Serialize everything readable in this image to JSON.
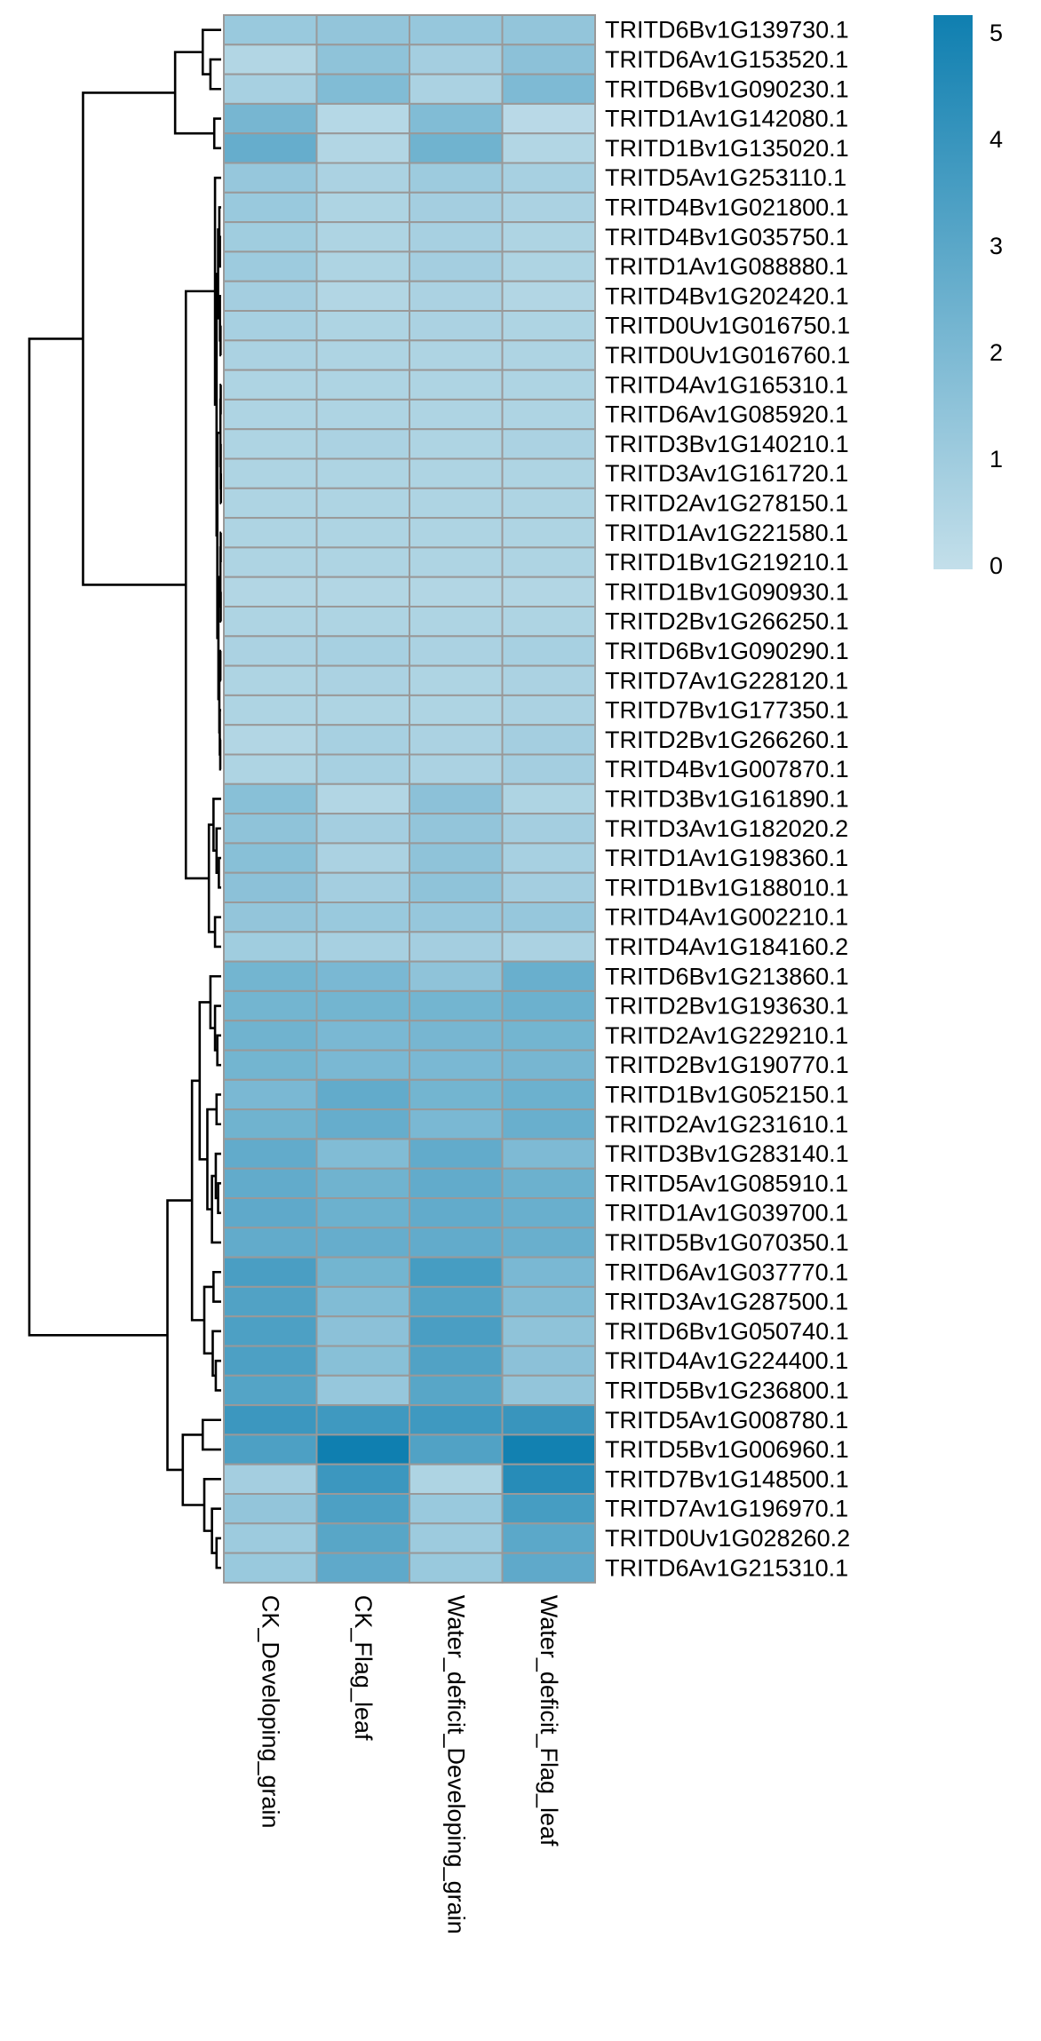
{
  "chart_data": {
    "type": "heatmap",
    "title": "",
    "xlabel": "",
    "ylabel": "",
    "grid": true,
    "legend_position": "top-right",
    "columns": [
      "CK_Developing_grain",
      "CK_Flag_leaf",
      "Water_deficit_Developing_grain",
      "Water_deficit_Flag_leaf"
    ],
    "rows": [
      "TRITD6Bv1G139730.1",
      "TRITD6Av1G153520.1",
      "TRITD6Bv1G090230.1",
      "TRITD1Av1G142080.1",
      "TRITD1Bv1G135020.1",
      "TRITD5Av1G253110.1",
      "TRITD4Bv1G021800.1",
      "TRITD4Bv1G035750.1",
      "TRITD1Av1G088880.1",
      "TRITD4Bv1G202420.1",
      "TRITD0Uv1G016750.1",
      "TRITD0Uv1G016760.1",
      "TRITD4Av1G165310.1",
      "TRITD6Av1G085920.1",
      "TRITD3Bv1G140210.1",
      "TRITD3Av1G161720.1",
      "TRITD2Av1G278150.1",
      "TRITD1Av1G221580.1",
      "TRITD1Bv1G219210.1",
      "TRITD1Bv1G090930.1",
      "TRITD2Bv1G266250.1",
      "TRITD6Bv1G090290.1",
      "TRITD7Av1G228120.1",
      "TRITD7Bv1G177350.1",
      "TRITD2Bv1G266260.1",
      "TRITD4Bv1G007870.1",
      "TRITD3Bv1G161890.1",
      "TRITD3Av1G182020.2",
      "TRITD1Av1G198360.1",
      "TRITD1Bv1G188010.1",
      "TRITD4Av1G002210.1",
      "TRITD4Av1G184160.2",
      "TRITD6Bv1G213860.1",
      "TRITD2Bv1G193630.1",
      "TRITD2Av1G229210.1",
      "TRITD2Bv1G190770.1",
      "TRITD1Bv1G052150.1",
      "TRITD2Av1G231610.1",
      "TRITD3Bv1G283140.1",
      "TRITD5Av1G085910.1",
      "TRITD1Av1G039700.1",
      "TRITD5Bv1G070350.1",
      "TRITD6Av1G037770.1",
      "TRITD3Av1G287500.1",
      "TRITD6Bv1G050740.1",
      "TRITD4Av1G224400.1",
      "TRITD5Bv1G236800.1",
      "TRITD5Av1G008780.1",
      "TRITD5Bv1G006960.1",
      "TRITD7Bv1G148500.1",
      "TRITD7Av1G196970.1",
      "TRITD0Uv1G028260.2",
      "TRITD6Av1G215310.1"
    ],
    "values": [
      [
        1.2,
        1.4,
        1.3,
        1.4
      ],
      [
        0.5,
        1.5,
        0.9,
        1.6
      ],
      [
        0.8,
        1.9,
        0.7,
        2.0
      ],
      [
        2.2,
        0.4,
        1.9,
        0.3
      ],
      [
        2.7,
        0.5,
        2.4,
        0.5
      ],
      [
        1.3,
        0.7,
        1.1,
        0.8
      ],
      [
        1.2,
        0.6,
        0.9,
        0.7
      ],
      [
        1.0,
        0.6,
        0.8,
        0.6
      ],
      [
        1.1,
        0.6,
        0.9,
        0.6
      ],
      [
        0.9,
        0.5,
        0.7,
        0.5
      ],
      [
        0.8,
        0.6,
        0.7,
        0.6
      ],
      [
        0.7,
        0.6,
        0.6,
        0.6
      ],
      [
        0.6,
        0.6,
        0.6,
        0.6
      ],
      [
        0.6,
        0.6,
        0.6,
        0.6
      ],
      [
        0.6,
        0.7,
        0.6,
        0.7
      ],
      [
        0.6,
        0.6,
        0.6,
        0.6
      ],
      [
        0.6,
        0.6,
        0.6,
        0.6
      ],
      [
        0.6,
        0.6,
        0.6,
        0.6
      ],
      [
        0.6,
        0.6,
        0.6,
        0.6
      ],
      [
        0.5,
        0.5,
        0.5,
        0.5
      ],
      [
        0.6,
        0.6,
        0.6,
        0.6
      ],
      [
        0.7,
        0.8,
        0.7,
        0.8
      ],
      [
        0.6,
        0.7,
        0.6,
        0.7
      ],
      [
        0.6,
        0.6,
        0.6,
        0.7
      ],
      [
        0.5,
        0.8,
        0.7,
        0.9
      ],
      [
        0.6,
        0.8,
        0.7,
        0.9
      ],
      [
        1.7,
        0.5,
        1.6,
        0.6
      ],
      [
        1.5,
        0.9,
        1.4,
        0.9
      ],
      [
        1.7,
        0.7,
        1.5,
        0.8
      ],
      [
        1.6,
        0.9,
        1.5,
        0.9
      ],
      [
        1.4,
        1.2,
        1.3,
        1.3
      ],
      [
        1.0,
        0.8,
        0.9,
        0.7
      ],
      [
        2.3,
        2.1,
        1.5,
        2.6
      ],
      [
        2.3,
        2.3,
        2.3,
        2.5
      ],
      [
        2.4,
        2.1,
        2.2,
        2.3
      ],
      [
        2.3,
        2.1,
        2.1,
        2.2
      ],
      [
        2.1,
        2.8,
        2.3,
        2.5
      ],
      [
        2.4,
        2.7,
        2.1,
        2.6
      ],
      [
        2.8,
        1.9,
        2.8,
        2.0
      ],
      [
        2.8,
        2.4,
        2.8,
        2.5
      ],
      [
        2.9,
        2.5,
        2.8,
        2.6
      ],
      [
        2.8,
        2.7,
        2.8,
        2.6
      ],
      [
        3.5,
        2.3,
        3.6,
        2.1
      ],
      [
        3.3,
        1.9,
        3.2,
        1.9
      ],
      [
        3.4,
        1.6,
        3.5,
        1.5
      ],
      [
        3.4,
        1.7,
        3.3,
        1.6
      ],
      [
        3.2,
        1.3,
        3.1,
        1.4
      ],
      [
        3.9,
        3.8,
        3.8,
        4.0
      ],
      [
        3.4,
        5.2,
        3.3,
        5.1
      ],
      [
        0.9,
        3.9,
        0.6,
        4.5
      ],
      [
        1.4,
        3.4,
        1.2,
        3.6
      ],
      [
        1.1,
        3.1,
        1.1,
        3.0
      ],
      [
        1.2,
        2.9,
        1.2,
        2.9
      ]
    ],
    "legend": {
      "min": 0,
      "max": 5.2,
      "ticks": [
        0,
        1,
        2,
        3,
        4,
        5
      ],
      "tick_labels": [
        "0",
        "1",
        "2",
        "3",
        "4",
        "5"
      ],
      "colors": {
        "low": "#c3dfea",
        "high": "#0f7fb0"
      }
    },
    "cell_border_color": "#999999",
    "dendrogram": "rows"
  }
}
